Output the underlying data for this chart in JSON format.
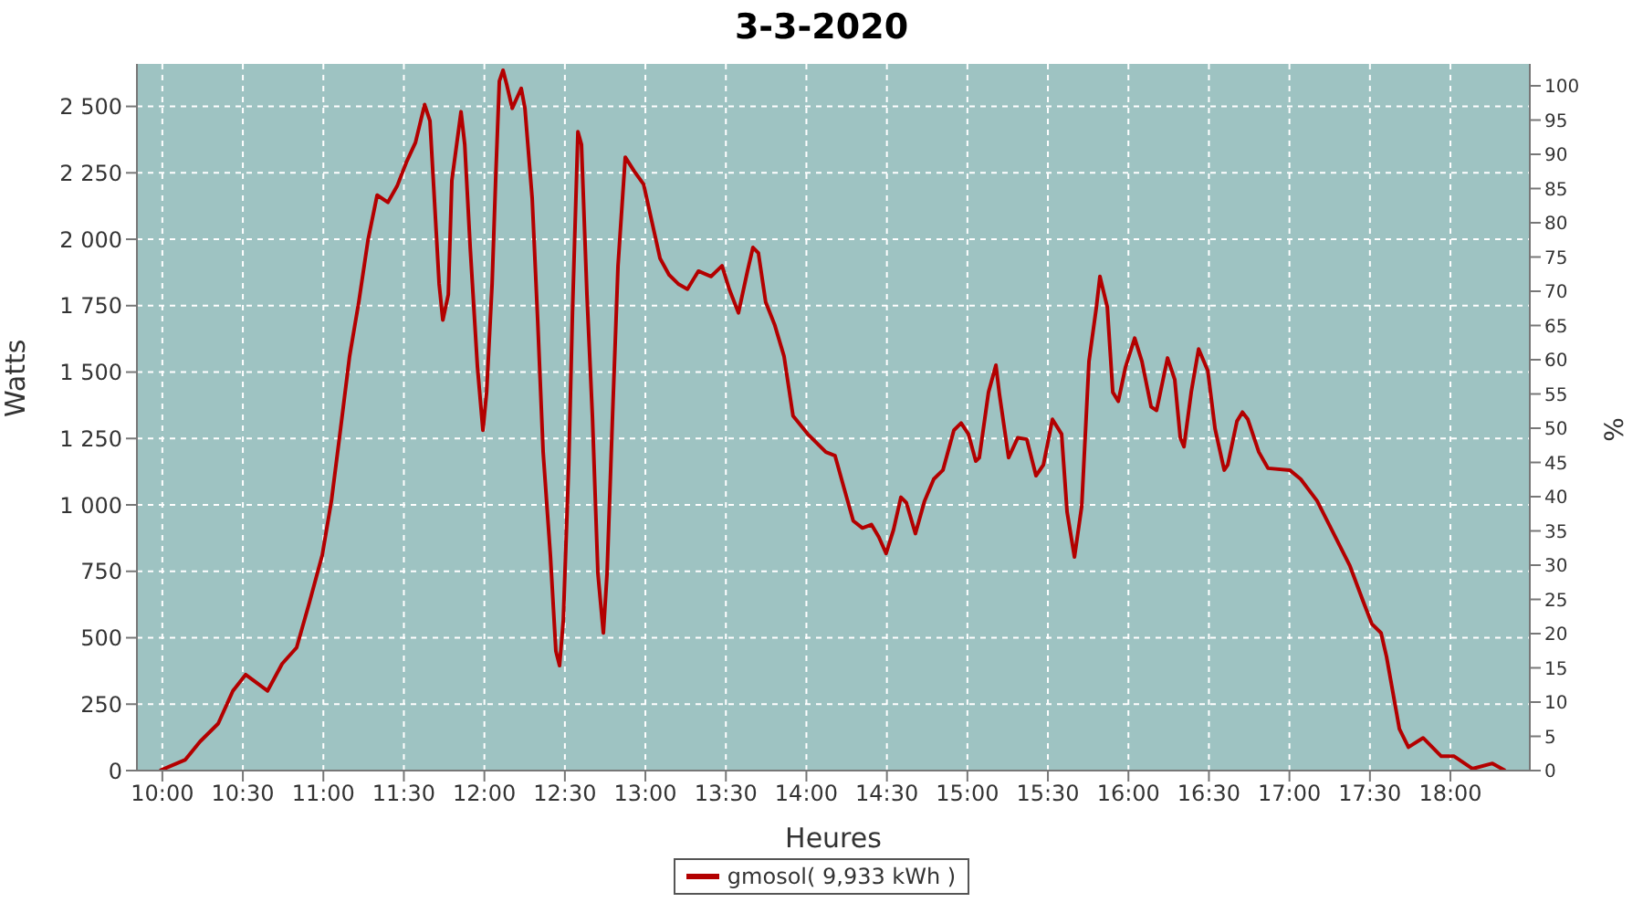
{
  "chart_data": {
    "type": "line",
    "title": "3-3-2020",
    "xlabel": "Heures",
    "ylabel": "Watts",
    "y2label": "%",
    "x": [
      9.984,
      10.063,
      10.143,
      10.234,
      10.347,
      10.438,
      10.517,
      10.653,
      10.744,
      10.834,
      10.914,
      10.993,
      11.05,
      11.107,
      11.163,
      11.22,
      11.277,
      11.334,
      11.401,
      11.458,
      11.515,
      11.572,
      11.629,
      11.662,
      11.685,
      11.719,
      11.742,
      11.776,
      11.798,
      11.855,
      11.878,
      11.912,
      11.957,
      11.991,
      12.014,
      12.048,
      12.071,
      12.093,
      12.116,
      12.139,
      12.173,
      12.229,
      12.252,
      12.297,
      12.331,
      12.365,
      12.41,
      12.444,
      12.467,
      12.49,
      12.524,
      12.547,
      12.581,
      12.603,
      12.637,
      12.671,
      12.705,
      12.739,
      12.762,
      12.796,
      12.83,
      12.875,
      12.932,
      12.989,
      13.034,
      13.091,
      13.147,
      13.204,
      13.261,
      13.329,
      13.408,
      13.476,
      13.521,
      13.578,
      13.634,
      13.668,
      13.702,
      13.747,
      13.804,
      13.861,
      13.917,
      14.008,
      14.121,
      14.178,
      14.234,
      14.291,
      14.348,
      14.404,
      14.45,
      14.495,
      14.541,
      14.587,
      14.621,
      14.677,
      14.734,
      14.791,
      14.848,
      14.916,
      14.961,
      15.006,
      15.052,
      15.074,
      15.131,
      15.177,
      15.199,
      15.256,
      15.313,
      15.369,
      15.426,
      15.472,
      15.528,
      15.585,
      15.619,
      15.665,
      15.71,
      15.755,
      15.801,
      15.823,
      15.869,
      15.903,
      15.937,
      15.982,
      16.039,
      16.084,
      16.141,
      16.175,
      16.243,
      16.288,
      16.322,
      16.345,
      16.39,
      16.436,
      16.493,
      16.538,
      16.595,
      16.617,
      16.674,
      16.708,
      16.742,
      16.81,
      16.867,
      17.002,
      17.07,
      17.172,
      17.263,
      17.376,
      17.456,
      17.512,
      17.569,
      17.603,
      17.683,
      17.739,
      17.83,
      17.943,
      18.023,
      18.136,
      18.261,
      18.34
    ],
    "series": [
      {
        "name": "gmosol( 9,933 kWh )",
        "color": "#b30000",
        "values": [
          0,
          20,
          41,
          109,
          177,
          300,
          361,
          300,
          402,
          463,
          634,
          811,
          1015,
          1287,
          1560,
          1764,
          1996,
          2166,
          2139,
          2200,
          2289,
          2364,
          2507,
          2446,
          2200,
          1832,
          1696,
          1792,
          2221,
          2480,
          2357,
          1969,
          1519,
          1281,
          1424,
          1832,
          2241,
          2595,
          2636,
          2582,
          2493,
          2568,
          2493,
          2153,
          1696,
          1199,
          811,
          450,
          395,
          565,
          1151,
          1723,
          2405,
          2357,
          1792,
          1335,
          743,
          518,
          743,
          1335,
          1900,
          2309,
          2255,
          2207,
          2084,
          1928,
          1866,
          1832,
          1812,
          1880,
          1860,
          1900,
          1812,
          1723,
          1880,
          1969,
          1948,
          1764,
          1676,
          1560,
          1335,
          1267,
          1199,
          1185,
          1063,
          940,
          913,
          926,
          879,
          817,
          906,
          1029,
          1008,
          892,
          1015,
          1097,
          1131,
          1281,
          1308,
          1267,
          1165,
          1178,
          1424,
          1526,
          1417,
          1178,
          1253,
          1247,
          1110,
          1151,
          1322,
          1267,
          974,
          804,
          995,
          1540,
          1744,
          1860,
          1744,
          1424,
          1390,
          1519,
          1628,
          1540,
          1369,
          1356,
          1553,
          1471,
          1253,
          1219,
          1424,
          1587,
          1505,
          1287,
          1131,
          1151,
          1315,
          1349,
          1322,
          1199,
          1138,
          1131,
          1097,
          1015,
          906,
          770,
          640,
          552,
          518,
          429,
          157,
          88,
          123,
          54,
          54,
          7,
          27,
          0
        ]
      }
    ],
    "xlim": [
      9.842,
      18.493
    ],
    "xticks": [
      {
        "value": 10,
        "label": "10:00"
      },
      {
        "value": 10.5,
        "label": "10:30"
      },
      {
        "value": 11,
        "label": "11:00"
      },
      {
        "value": 11.5,
        "label": "11:30"
      },
      {
        "value": 12,
        "label": "12:00"
      },
      {
        "value": 12.5,
        "label": "12:30"
      },
      {
        "value": 13,
        "label": "13:00"
      },
      {
        "value": 13.5,
        "label": "13:30"
      },
      {
        "value": 14,
        "label": "14:00"
      },
      {
        "value": 14.5,
        "label": "14:30"
      },
      {
        "value": 15,
        "label": "15:00"
      },
      {
        "value": 15.5,
        "label": "15:30"
      },
      {
        "value": 16,
        "label": "16:00"
      },
      {
        "value": 16.5,
        "label": "16:30"
      },
      {
        "value": 17,
        "label": "17:00"
      },
      {
        "value": 17.5,
        "label": "17:30"
      },
      {
        "value": 18,
        "label": "18:00"
      }
    ],
    "ylim": [
      0,
      2660
    ],
    "yticks": [
      0,
      250,
      500,
      750,
      {
        "value": 1000,
        "label": "1 000"
      },
      {
        "value": 1250,
        "label": "1 250"
      },
      {
        "value": 1500,
        "label": "1 500"
      },
      {
        "value": 1750,
        "label": "1 750"
      },
      {
        "value": 2000,
        "label": "2 000"
      },
      {
        "value": 2250,
        "label": "2 250"
      },
      {
        "value": 2500,
        "label": "2 500"
      }
    ],
    "y2lim": [
      0,
      103.2
    ],
    "y2ticks": [
      0,
      5,
      10,
      15,
      20,
      25,
      30,
      35,
      40,
      45,
      50,
      55,
      60,
      65,
      70,
      75,
      80,
      85,
      90,
      95,
      100
    ],
    "grid": true,
    "legend": "bottom",
    "marker": "none",
    "line_style": "solid"
  }
}
